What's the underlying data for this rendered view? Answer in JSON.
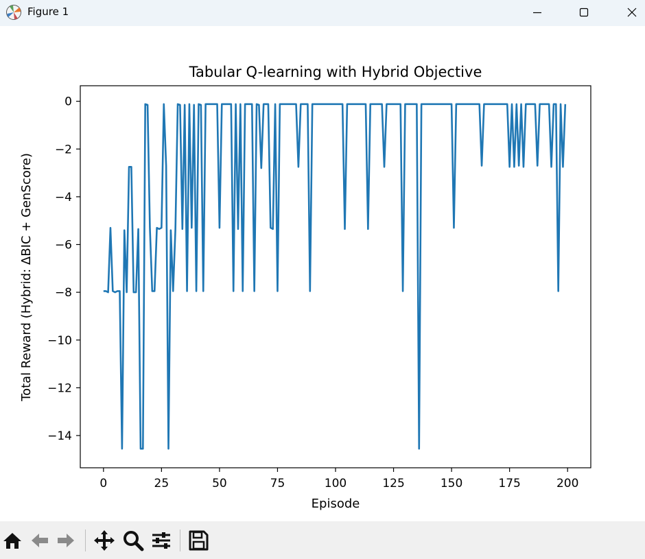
{
  "window": {
    "title": "Figure 1",
    "icon": "matplotlib-icon",
    "controls": [
      "minimize-icon",
      "maximize-icon",
      "close-icon"
    ]
  },
  "toolbar": {
    "buttons": [
      "home-icon",
      "back-arrow-icon",
      "forward-arrow-icon",
      "pan-move-icon",
      "zoom-magnifier-icon",
      "configure-subplots-icon",
      "save-floppy-icon"
    ]
  },
  "chart_data": {
    "type": "line",
    "title": "Tabular Q-learning with Hybrid Objective",
    "xlabel": "Episode",
    "ylabel": "Total Reward (Hybrid: ΔBIC + GenScore)",
    "xlim": [
      -10,
      210
    ],
    "ylim": [
      -15.35,
      0.65
    ],
    "xticks": [
      0,
      25,
      50,
      75,
      100,
      125,
      150,
      175,
      200
    ],
    "yticks": [
      0,
      -2,
      -4,
      -6,
      -8,
      -10,
      -12,
      -14
    ],
    "xtick_labels": [
      "0",
      "25",
      "50",
      "75",
      "100",
      "125",
      "150",
      "175",
      "200"
    ],
    "ytick_labels": [
      "0",
      "−2",
      "−4",
      "−6",
      "−8",
      "−10",
      "−12",
      "−14"
    ],
    "grid": false,
    "line_color": "#1f77b4",
    "series": [
      {
        "x": [
          0,
          1,
          2,
          3,
          4,
          5,
          6,
          7,
          8,
          9,
          10,
          11,
          12,
          13,
          14,
          15,
          16,
          17,
          18,
          19,
          20,
          21,
          22,
          23,
          24,
          25,
          26,
          27,
          28,
          29,
          30,
          31,
          32,
          33,
          34,
          35,
          36,
          37,
          38,
          39,
          40,
          41,
          42,
          43,
          44,
          45,
          46,
          47,
          48,
          49,
          50,
          51,
          52,
          53,
          54,
          55,
          56,
          57,
          58,
          59,
          60,
          61,
          62,
          63,
          64,
          65,
          66,
          67,
          68,
          69,
          70,
          71,
          72,
          73,
          74,
          75,
          76,
          77,
          78,
          79,
          80,
          81,
          82,
          83,
          84,
          85,
          86,
          87,
          88,
          89,
          90,
          91,
          92,
          93,
          94,
          95,
          96,
          97,
          98,
          99,
          100,
          101,
          102,
          103,
          104,
          105,
          106,
          107,
          108,
          109,
          110,
          111,
          112,
          113,
          114,
          115,
          116,
          117,
          118,
          119,
          120,
          121,
          122,
          123,
          124,
          125,
          126,
          127,
          128,
          129,
          130,
          131,
          132,
          133,
          134,
          135,
          136,
          137,
          138,
          139,
          140,
          141,
          142,
          143,
          144,
          145,
          146,
          147,
          148,
          149,
          150,
          151,
          152,
          153,
          154,
          155,
          156,
          157,
          158,
          159,
          160,
          161,
          162,
          163,
          164,
          165,
          166,
          167,
          168,
          169,
          170,
          171,
          172,
          173,
          174,
          175,
          176,
          177,
          178,
          179,
          180,
          181,
          182,
          183,
          184,
          185,
          186,
          187,
          188,
          189,
          190,
          191,
          192,
          193,
          194,
          195,
          196,
          197,
          198,
          199
        ],
        "y": [
          -7.95,
          -7.95,
          -8.0,
          -5.3,
          -7.95,
          -8.0,
          -7.95,
          -7.95,
          -14.55,
          -5.4,
          -8.0,
          -2.75,
          -2.75,
          -8.0,
          -8.0,
          -5.35,
          -14.55,
          -14.55,
          -0.12,
          -0.15,
          -5.3,
          -7.95,
          -7.95,
          -5.3,
          -5.35,
          -5.3,
          -0.12,
          -2.7,
          -14.55,
          -5.4,
          -7.95,
          -5.35,
          -0.12,
          -0.15,
          -5.35,
          -0.15,
          -7.95,
          -0.12,
          -5.3,
          -0.15,
          -7.95,
          -0.12,
          -0.15,
          -7.95,
          -0.12,
          -0.12,
          -0.12,
          -0.12,
          -0.12,
          -0.12,
          -5.3,
          -0.12,
          -0.12,
          -0.12,
          -0.12,
          -0.12,
          -7.95,
          -0.12,
          -5.35,
          -0.12,
          -7.95,
          -0.12,
          -0.12,
          -0.12,
          -0.12,
          -7.95,
          -0.12,
          -0.15,
          -2.8,
          -0.12,
          -0.12,
          -0.12,
          -5.3,
          -5.35,
          -0.12,
          -7.95,
          -0.12,
          -0.12,
          -0.12,
          -0.12,
          -0.12,
          -0.12,
          -0.12,
          -0.12,
          -2.75,
          -0.12,
          -0.12,
          -0.12,
          -0.12,
          -7.95,
          -0.12,
          -0.12,
          -0.12,
          -0.12,
          -0.12,
          -0.12,
          -0.12,
          -0.12,
          -0.12,
          -0.12,
          -0.12,
          -0.12,
          -0.12,
          -0.12,
          -5.35,
          -0.12,
          -0.12,
          -0.12,
          -0.12,
          -0.12,
          -0.12,
          -0.12,
          -0.12,
          -0.12,
          -5.35,
          -0.12,
          -0.12,
          -0.12,
          -0.12,
          -0.12,
          -0.12,
          -2.75,
          -0.12,
          -0.12,
          -0.12,
          -0.12,
          -0.12,
          -0.12,
          -0.12,
          -7.95,
          -0.12,
          -0.12,
          -0.12,
          -0.12,
          -0.12,
          -0.12,
          -14.55,
          -0.12,
          -0.12,
          -0.12,
          -0.12,
          -0.12,
          -0.12,
          -0.12,
          -0.12,
          -0.12,
          -0.12,
          -0.12,
          -0.12,
          -0.12,
          -0.12,
          -5.3,
          -0.12,
          -0.12,
          -0.12,
          -0.12,
          -0.12,
          -0.12,
          -0.12,
          -0.12,
          -0.12,
          -0.12,
          -0.12,
          -2.7,
          -0.12,
          -0.12,
          -0.12,
          -0.12,
          -0.12,
          -0.12,
          -0.12,
          -0.12,
          -0.12,
          -0.12,
          -0.12,
          -2.75,
          -0.12,
          -2.75,
          -0.12,
          -2.7,
          -0.12,
          -2.75,
          -0.12,
          -0.12,
          -0.12,
          -0.12,
          -0.12,
          -2.7,
          -0.12,
          -0.12,
          -0.12,
          -0.12,
          -0.12,
          -2.75,
          -0.12,
          -0.12,
          -7.95,
          -0.12,
          -2.75,
          -0.12
        ]
      }
    ]
  }
}
